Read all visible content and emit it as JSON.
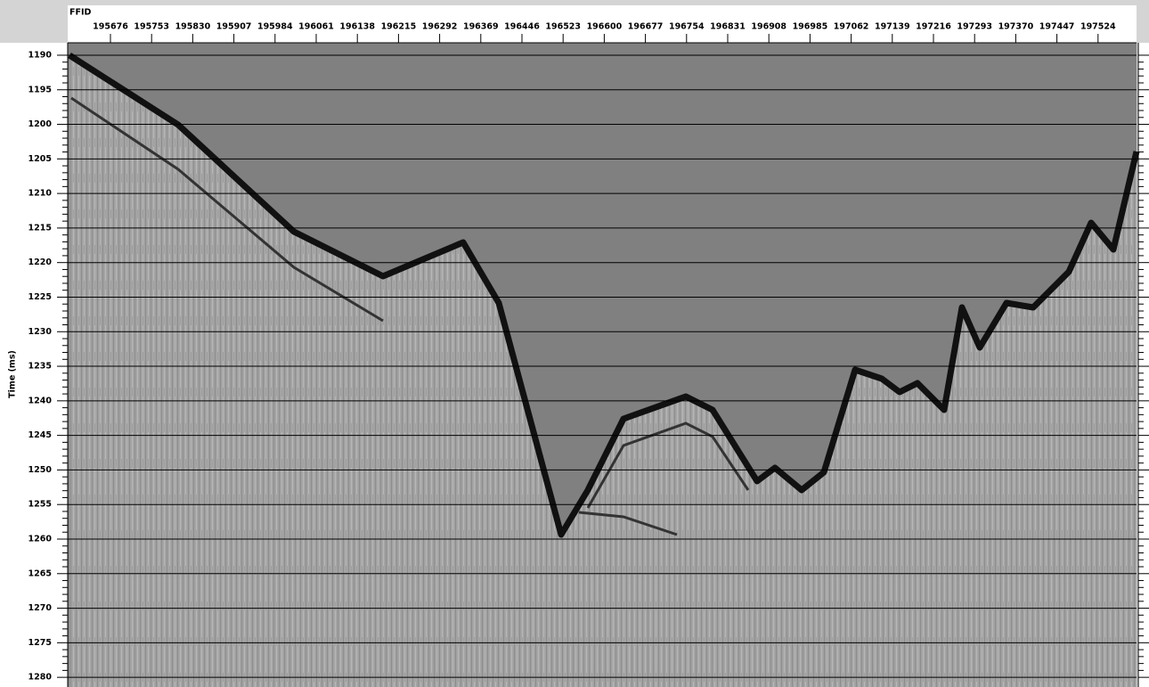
{
  "chart_data": {
    "type": "seismic",
    "xlabel": "FFID",
    "ylabel": "Time (ms)",
    "xlim": [
      195596,
      197596
    ],
    "xticks": [
      195676,
      195753,
      195830,
      195907,
      195984,
      196061,
      196138,
      196215,
      196292,
      196369,
      196446,
      196523,
      196600,
      196677,
      196754,
      196831,
      196908,
      196985,
      197062,
      197139,
      197216,
      197293,
      197370,
      197447,
      197524
    ],
    "ylim": [
      1188.2,
      1281.4
    ],
    "yticks": [
      1190,
      1195,
      1200,
      1205,
      1210,
      1215,
      1220,
      1225,
      1230,
      1235,
      1240,
      1245,
      1250,
      1255,
      1260,
      1265,
      1270,
      1275,
      1280
    ],
    "grid": true
  }
}
